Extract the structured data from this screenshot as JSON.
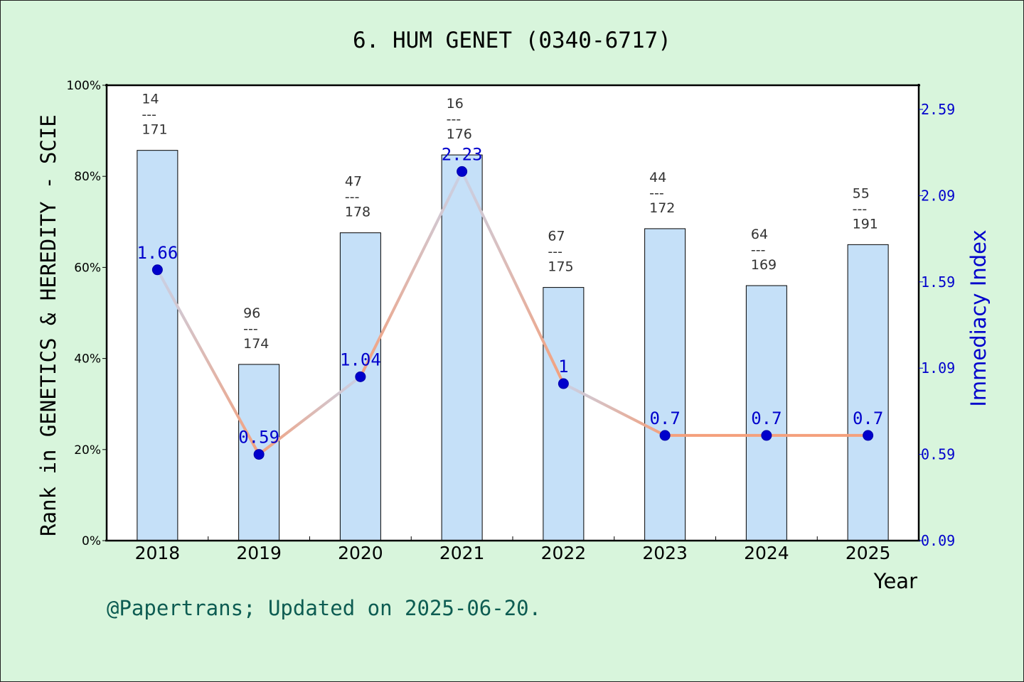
{
  "chart_data": {
    "type": "bar+line",
    "title": "6. HUM GENET (0340-6717)",
    "xlabel": "Year",
    "ylabel_left": "Rank in GENETICS & HEREDITY - SCIE",
    "ylabel_right": "Immediacy Index",
    "credit": "@Papertrans; Updated on 2025-06-20.",
    "categories": [
      "2018",
      "2019",
      "2020",
      "2021",
      "2022",
      "2023",
      "2024",
      "2025"
    ],
    "left_axis": {
      "ylim": [
        0,
        100
      ],
      "ticks": [
        0,
        20,
        40,
        60,
        80,
        100
      ],
      "tick_labels": [
        "0%",
        "20%",
        "40%",
        "60%",
        "80%",
        "100%"
      ]
    },
    "right_axis": {
      "ylim": [
        0.09,
        2.73
      ],
      "ticks": [
        0.09,
        0.59,
        1.09,
        1.59,
        2.09,
        2.59
      ],
      "tick_labels": [
        "0.09",
        "0.59",
        "1.09",
        "1.59",
        "2.09",
        "2.59"
      ]
    },
    "bars": {
      "values_percent": [
        85.7,
        38.7,
        67.6,
        84.7,
        55.6,
        68.5,
        56.0,
        65.0
      ],
      "rank": [
        "14",
        "96",
        "47",
        "16",
        "67",
        "44",
        "64",
        "55"
      ],
      "total": [
        "171",
        "174",
        "178",
        "176",
        "175",
        "172",
        "169",
        "191"
      ],
      "separator": "---"
    },
    "line": {
      "values": [
        1.66,
        0.59,
        1.04,
        2.23,
        1.0,
        0.7,
        0.7,
        0.7
      ],
      "point_labels": [
        "1.66",
        "0.59",
        "1.04",
        "2.23",
        "1",
        "0.7",
        "0.7",
        "0.7"
      ],
      "line_color": "#f4a07c",
      "point_color": "#0000cc"
    },
    "colors": {
      "background": "#d8f5dc",
      "bar_fill": "#c5e0f8",
      "right_axis": "#0000cc",
      "credit": "#0d5c52"
    }
  }
}
